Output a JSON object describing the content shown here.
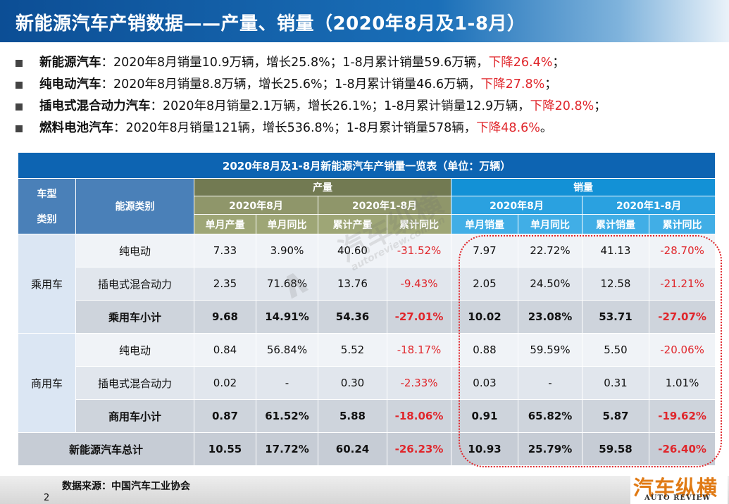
{
  "title": "新能源汽车产销数据——产量、销量（2020年8月及1-8月）",
  "bullets": [
    {
      "lead": "新能源汽车",
      "body": "：2020年8月销量10.9万辆，增长25.8%；1-8月累计销量59.6万辆，",
      "red": "下降26.4%",
      "tail": "；"
    },
    {
      "lead": "纯电动汽车",
      "body": "：2020年8月销量8.8万辆，增长25.6%；1-8月累计销量46.6万辆，",
      "red": "下降27.8%",
      "tail": "；"
    },
    {
      "lead": "插电式混合动力汽车",
      "body": "：2020年8月销量2.1万辆，增长26.1%；1-8月累计销量12.9万辆，",
      "red": "下降20.8%",
      "tail": "；"
    },
    {
      "lead": "燃料电池汽车",
      "body": "：2020年8月销量121辆，增长536.8%；1-8月累计销量578辆，",
      "red": "下降48.6%",
      "tail": "。"
    }
  ],
  "table": {
    "caption": "2020年8月及1-8月新能源汽车产销量一览表（单位：万辆）",
    "header": {
      "vehicle_type": "车型类别",
      "vehicle_type_line1": "车型",
      "vehicle_type_line2": "类别",
      "energy_type": "能源类别",
      "production": "产量",
      "sales": "销量",
      "period_month": "2020年8月",
      "period_ytd": "2020年1-8月",
      "cols": [
        "单月产量",
        "单月同比",
        "累计产量",
        "累计同比",
        "单月销量",
        "单月同比",
        "累计销量",
        "累计同比"
      ]
    },
    "groups": [
      {
        "category": "乘用车",
        "rows": [
          {
            "energy": "纯电动",
            "values": [
              "7.33",
              "3.90%",
              "40.60",
              "-31.52%",
              "7.97",
              "22.72%",
              "41.13",
              "-28.70%"
            ]
          },
          {
            "energy": "插电式混合动力",
            "values": [
              "2.35",
              "71.68%",
              "13.76",
              "-9.43%",
              "2.05",
              "24.50%",
              "12.58",
              "-21.21%"
            ]
          },
          {
            "energy": "乘用车小计",
            "values": [
              "9.68",
              "14.91%",
              "54.36",
              "-27.01%",
              "10.02",
              "23.08%",
              "53.71",
              "-27.07%"
            ]
          }
        ]
      },
      {
        "category": "商用车",
        "rows": [
          {
            "energy": "纯电动",
            "values": [
              "0.84",
              "56.84%",
              "5.52",
              "-18.17%",
              "0.88",
              "59.59%",
              "5.50",
              "-20.06%"
            ]
          },
          {
            "energy": "插电式混合动力",
            "values": [
              "0.02",
              "-",
              "0.30",
              "-2.33%",
              "0.03",
              "-",
              "0.31",
              "1.01%"
            ]
          },
          {
            "energy": "商用车小计",
            "values": [
              "0.87",
              "61.52%",
              "5.88",
              "-18.06%",
              "0.91",
              "65.82%",
              "5.87",
              "-19.62%"
            ]
          }
        ]
      }
    ],
    "total": {
      "label": "新能源汽车总计",
      "values": [
        "10.55",
        "17.72%",
        "60.24",
        "-26.23%",
        "10.93",
        "25.79%",
        "59.58",
        "-26.40%"
      ]
    }
  },
  "watermark": {
    "cn": "汽车纵横",
    "url": "autoreview.com.cn"
  },
  "source": "数据来源：中国汽车工业协会",
  "page_number": "2",
  "brand": {
    "cn": "汽车纵横",
    "en": "AUTO REVIEW"
  },
  "colors": {
    "title_bar": "#0c4e95",
    "negative": "#e0262b",
    "production_header": "#727a52",
    "sales_header": "#1391d6",
    "caption": "#0d64b2",
    "brand": "#e07a14"
  }
}
